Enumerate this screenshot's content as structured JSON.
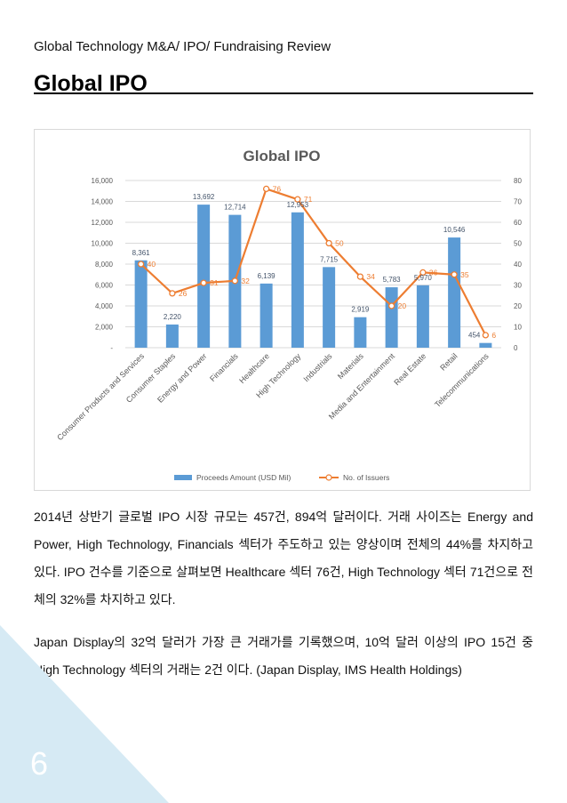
{
  "header": {
    "subtitle": "Global Technology M&A/ IPO/ Fundraising Review",
    "section_title": "Global IPO"
  },
  "colors": {
    "bar": "#5b9bd5",
    "line": "#ed7d31",
    "deco": "#d6eaf4"
  },
  "chart_data": {
    "type": "bar",
    "title": "Global IPO",
    "categories": [
      "Consumer Products and Services",
      "Consumer Staples",
      "Energy and Power",
      "Financials",
      "Healthcare",
      "High Technology",
      "Industrials",
      "Materials",
      "Media and Entertainment",
      "Real Estate",
      "Retail",
      "Telecommunications"
    ],
    "series": [
      {
        "name": "Proceeds Amount (USD Mil)",
        "type": "bar",
        "axis": "left",
        "values": [
          8361,
          2220,
          13692,
          12714,
          6139,
          12953,
          7715,
          2919,
          5783,
          5970,
          10546,
          454
        ],
        "labels": [
          "8,361",
          "2,220",
          "13,692",
          "12,714",
          "6,139",
          "12,953",
          "7,715",
          "2,919",
          "5,783",
          "5,970",
          "10,546",
          "454"
        ]
      },
      {
        "name": "No. of Issuers",
        "type": "line",
        "axis": "right",
        "values": [
          40,
          26,
          31,
          32,
          76,
          71,
          50,
          34,
          20,
          36,
          35,
          6
        ],
        "labels": [
          "40",
          "26",
          "31",
          "32",
          "76",
          "71",
          "50",
          "34",
          "20",
          "36",
          "35",
          "6"
        ]
      }
    ],
    "y_left": {
      "ticks": [
        0,
        2000,
        4000,
        6000,
        8000,
        10000,
        12000,
        14000,
        16000
      ],
      "tick_labels": [
        "-",
        "2,000",
        "4,000",
        "6,000",
        "8,000",
        "10,000",
        "12,000",
        "14,000",
        "16,000"
      ],
      "range": [
        0,
        16000
      ]
    },
    "y_right": {
      "ticks": [
        0,
        10,
        20,
        30,
        40,
        50,
        60,
        70,
        80
      ],
      "tick_labels": [
        "0",
        "10",
        "20",
        "30",
        "40",
        "50",
        "60",
        "70",
        "80"
      ],
      "range": [
        0,
        80
      ]
    },
    "grid": true,
    "legend": "bottom"
  },
  "paragraphs": {
    "p1": "2014년 상반기 글로벌 IPO 시장 규모는 457건, 894억 달러이다. 거래 사이즈는 Energy and Power, High Technology, Financials 섹터가 주도하고 있는 양상이며 전체의 44%를 차지하고 있다. IPO 건수를 기준으로 살펴보면 Healthcare 섹터 76건, High Technology 섹터 71건으로 전체의 32%를 차지하고 있다.",
    "p2": "Japan Display의 32억 달러가 가장 큰 거래가를 기록했으며, 10억 달러 이상의 IPO 15건 중 High Technology 섹터의 거래는 2건 이다. (Japan Display, IMS Health Holdings)"
  },
  "footer": {
    "page_number": "6"
  }
}
